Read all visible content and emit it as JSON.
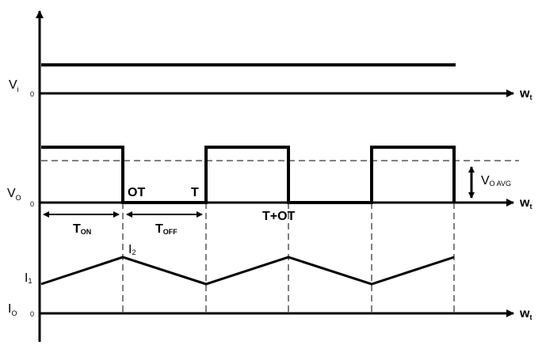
{
  "labels": {
    "vi_main": "V",
    "vi_sub": "i",
    "vo_main": "V",
    "vo_sub": "O",
    "io_main": "I",
    "io_sub": "O",
    "zero": "0",
    "wt_main": "w",
    "wt_sub": "t",
    "ot": "OT",
    "t": "T",
    "t_plus_ot": "T+OT",
    "ton_main": "T",
    "ton_sub": "ON",
    "toff_main": "T",
    "toff_sub": "OFF",
    "i2_main": "I",
    "i2_sub": "2",
    "i1_main": "I",
    "i1_sub": "1",
    "voavg_main": "V",
    "voavg_sub": "O AVG"
  },
  "colors": {
    "line": "#000000",
    "background": "#ffffff"
  }
}
